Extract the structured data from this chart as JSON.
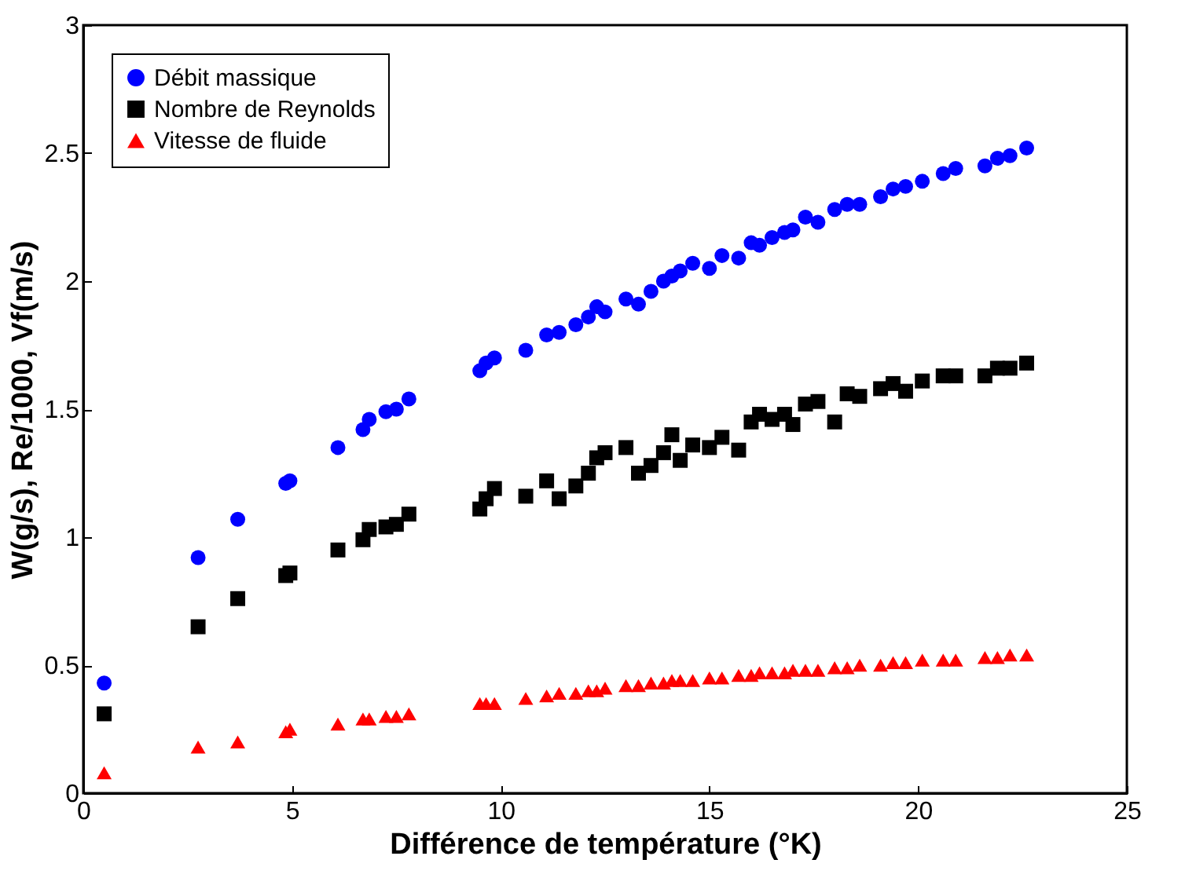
{
  "chart_data": {
    "type": "scatter",
    "xlabel": "Différence de température (°K)",
    "ylabel": "W(g/s), Re/1000, Vf(m/s)",
    "x": [
      0.5,
      2.75,
      3.7,
      4.85,
      4.95,
      6.1,
      6.7,
      6.85,
      7.25,
      7.5,
      7.8,
      9.5,
      9.65,
      9.85,
      10.6,
      11.1,
      11.4,
      11.8,
      12.1,
      12.3,
      12.5,
      13.0,
      13.3,
      13.6,
      13.9,
      14.1,
      14.3,
      14.6,
      15.0,
      15.3,
      15.7,
      16.0,
      16.2,
      16.5,
      16.8,
      17.0,
      17.3,
      17.6,
      18.0,
      18.3,
      18.6,
      19.1,
      19.4,
      19.7,
      20.1,
      20.6,
      20.9,
      21.6,
      21.9,
      22.2,
      22.6
    ],
    "series": [
      {
        "name": "Débit massique",
        "color": "#0000ff",
        "marker": "circle",
        "values": [
          0.43,
          0.92,
          1.07,
          1.21,
          1.22,
          1.35,
          1.42,
          1.46,
          1.49,
          1.5,
          1.54,
          1.65,
          1.68,
          1.7,
          1.73,
          1.79,
          1.8,
          1.83,
          1.86,
          1.9,
          1.88,
          1.93,
          1.91,
          1.96,
          2.0,
          2.02,
          2.04,
          2.07,
          2.05,
          2.1,
          2.09,
          2.15,
          2.14,
          2.17,
          2.19,
          2.2,
          2.25,
          2.23,
          2.28,
          2.3,
          2.3,
          2.33,
          2.36,
          2.37,
          2.39,
          2.42,
          2.44,
          2.45,
          2.48,
          2.49,
          2.52
        ]
      },
      {
        "name": " Nombre de Reynolds",
        "color": "#000000",
        "marker": "square",
        "values": [
          0.31,
          0.65,
          0.76,
          0.85,
          0.86,
          0.95,
          0.99,
          1.03,
          1.04,
          1.05,
          1.09,
          1.11,
          1.15,
          1.19,
          1.16,
          1.22,
          1.15,
          1.2,
          1.25,
          1.31,
          1.33,
          1.35,
          1.25,
          1.28,
          1.33,
          1.4,
          1.3,
          1.36,
          1.35,
          1.39,
          1.34,
          1.45,
          1.48,
          1.46,
          1.48,
          1.44,
          1.52,
          1.53,
          1.45,
          1.56,
          1.55,
          1.58,
          1.6,
          1.57,
          1.61,
          1.63,
          1.63,
          1.63,
          1.66,
          1.66,
          1.68
        ]
      },
      {
        "name": "Vitesse de fluide",
        "color": "#ff0000",
        "marker": "triangle",
        "values": [
          0.08,
          0.18,
          0.2,
          0.24,
          0.25,
          0.27,
          0.29,
          0.29,
          0.3,
          0.3,
          0.31,
          0.35,
          0.35,
          0.35,
          0.37,
          0.38,
          0.39,
          0.39,
          0.4,
          0.4,
          0.41,
          0.42,
          0.42,
          0.43,
          0.43,
          0.44,
          0.44,
          0.44,
          0.45,
          0.45,
          0.46,
          0.46,
          0.47,
          0.47,
          0.47,
          0.48,
          0.48,
          0.48,
          0.49,
          0.49,
          0.5,
          0.5,
          0.51,
          0.51,
          0.52,
          0.52,
          0.52,
          0.53,
          0.53,
          0.54,
          0.54
        ]
      }
    ],
    "xlim": [
      0,
      25
    ],
    "xticks": [
      0,
      5,
      10,
      15,
      20,
      25
    ],
    "ylim": [
      0,
      3
    ],
    "yticks": [
      0,
      0.5,
      1,
      1.5,
      2,
      2.5,
      3
    ],
    "legend": "top left",
    "grid": false
  }
}
